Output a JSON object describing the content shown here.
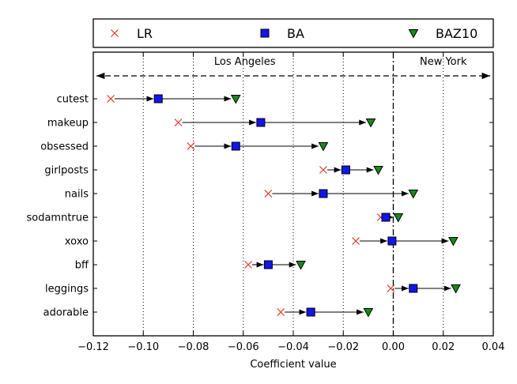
{
  "chart_data": {
    "type": "scatter",
    "xlabel": "Coefficient value",
    "xlim": [
      -0.12,
      0.04
    ],
    "x_ticks": [
      "−0.12",
      "−0.10",
      "−0.08",
      "−0.06",
      "−0.04",
      "−0.02",
      "0.00",
      "0.02",
      "0.04"
    ],
    "x_tick_values": [
      -0.12,
      -0.1,
      -0.08,
      -0.06,
      -0.04,
      -0.02,
      0.0,
      0.02,
      0.04
    ],
    "grid": "vertical dotted",
    "legend_position": "top",
    "regions": {
      "left_label": "Los Angeles",
      "right_label": "New York",
      "divider_x": 0.0
    },
    "categories": [
      "cutest",
      "makeup",
      "obsessed",
      "girlposts",
      "nails",
      "sodamntrue",
      "xoxo",
      "bff",
      "leggings",
      "adorable"
    ],
    "series": [
      {
        "name": "LR",
        "marker": "x",
        "color": "#e8322b",
        "values": [
          -0.113,
          -0.086,
          -0.081,
          -0.028,
          -0.05,
          -0.005,
          -0.015,
          -0.058,
          -0.001,
          -0.045
        ]
      },
      {
        "name": "BA",
        "marker": "square",
        "color": "#1414ee",
        "values": [
          -0.094,
          -0.053,
          -0.063,
          -0.019,
          -0.028,
          -0.003,
          -0.0005,
          -0.05,
          0.008,
          -0.033
        ]
      },
      {
        "name": "BAZ10",
        "marker": "triangle-down",
        "color": "#1a8a1a",
        "values": [
          -0.063,
          -0.009,
          -0.028,
          -0.006,
          0.008,
          0.002,
          0.024,
          -0.037,
          0.025,
          -0.01
        ]
      }
    ]
  }
}
